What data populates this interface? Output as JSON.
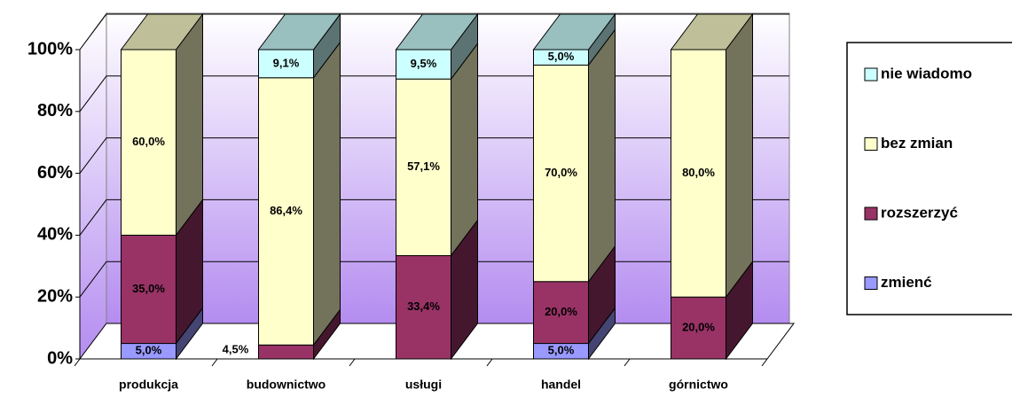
{
  "chart_data": {
    "type": "bar3d_stacked",
    "categories": [
      "produkcja",
      "budownictwo",
      "usługi",
      "handel",
      "górnictwo"
    ],
    "series": [
      {
        "name": "zmienć",
        "color": "#9999ff",
        "values": [
          5.0,
          null,
          null,
          5.0,
          null
        ],
        "value_labels": [
          "5,0%",
          null,
          null,
          "5,0%",
          null
        ]
      },
      {
        "name": "rozszerzyć",
        "color": "#993366",
        "values": [
          35.0,
          4.5,
          33.4,
          20.0,
          20.0
        ],
        "value_labels": [
          "35,0%",
          "4,5%",
          "33,4%",
          "20,0%",
          "20,0%"
        ]
      },
      {
        "name": "bez zmian",
        "color": "#ffffcc",
        "values": [
          60.0,
          86.4,
          57.1,
          70.0,
          80.0
        ],
        "value_labels": [
          "60,0%",
          "86,4%",
          "57,1%",
          "70,0%",
          "80,0%"
        ]
      },
      {
        "name": "nie wiadomo",
        "color": "#ccffff",
        "values": [
          null,
          9.1,
          9.5,
          5.0,
          null
        ],
        "value_labels": [
          null,
          "9,1%",
          "9,5%",
          "5,0%",
          null
        ]
      }
    ],
    "ylim": [
      0,
      100
    ],
    "yticks": [
      {
        "value": 0,
        "label": "0%"
      },
      {
        "value": 20,
        "label": "20%"
      },
      {
        "value": 40,
        "label": "40%"
      },
      {
        "value": 60,
        "label": "60%"
      },
      {
        "value": 80,
        "label": "80%"
      },
      {
        "value": 100,
        "label": "100%"
      }
    ],
    "grid": true,
    "legend": "right"
  }
}
